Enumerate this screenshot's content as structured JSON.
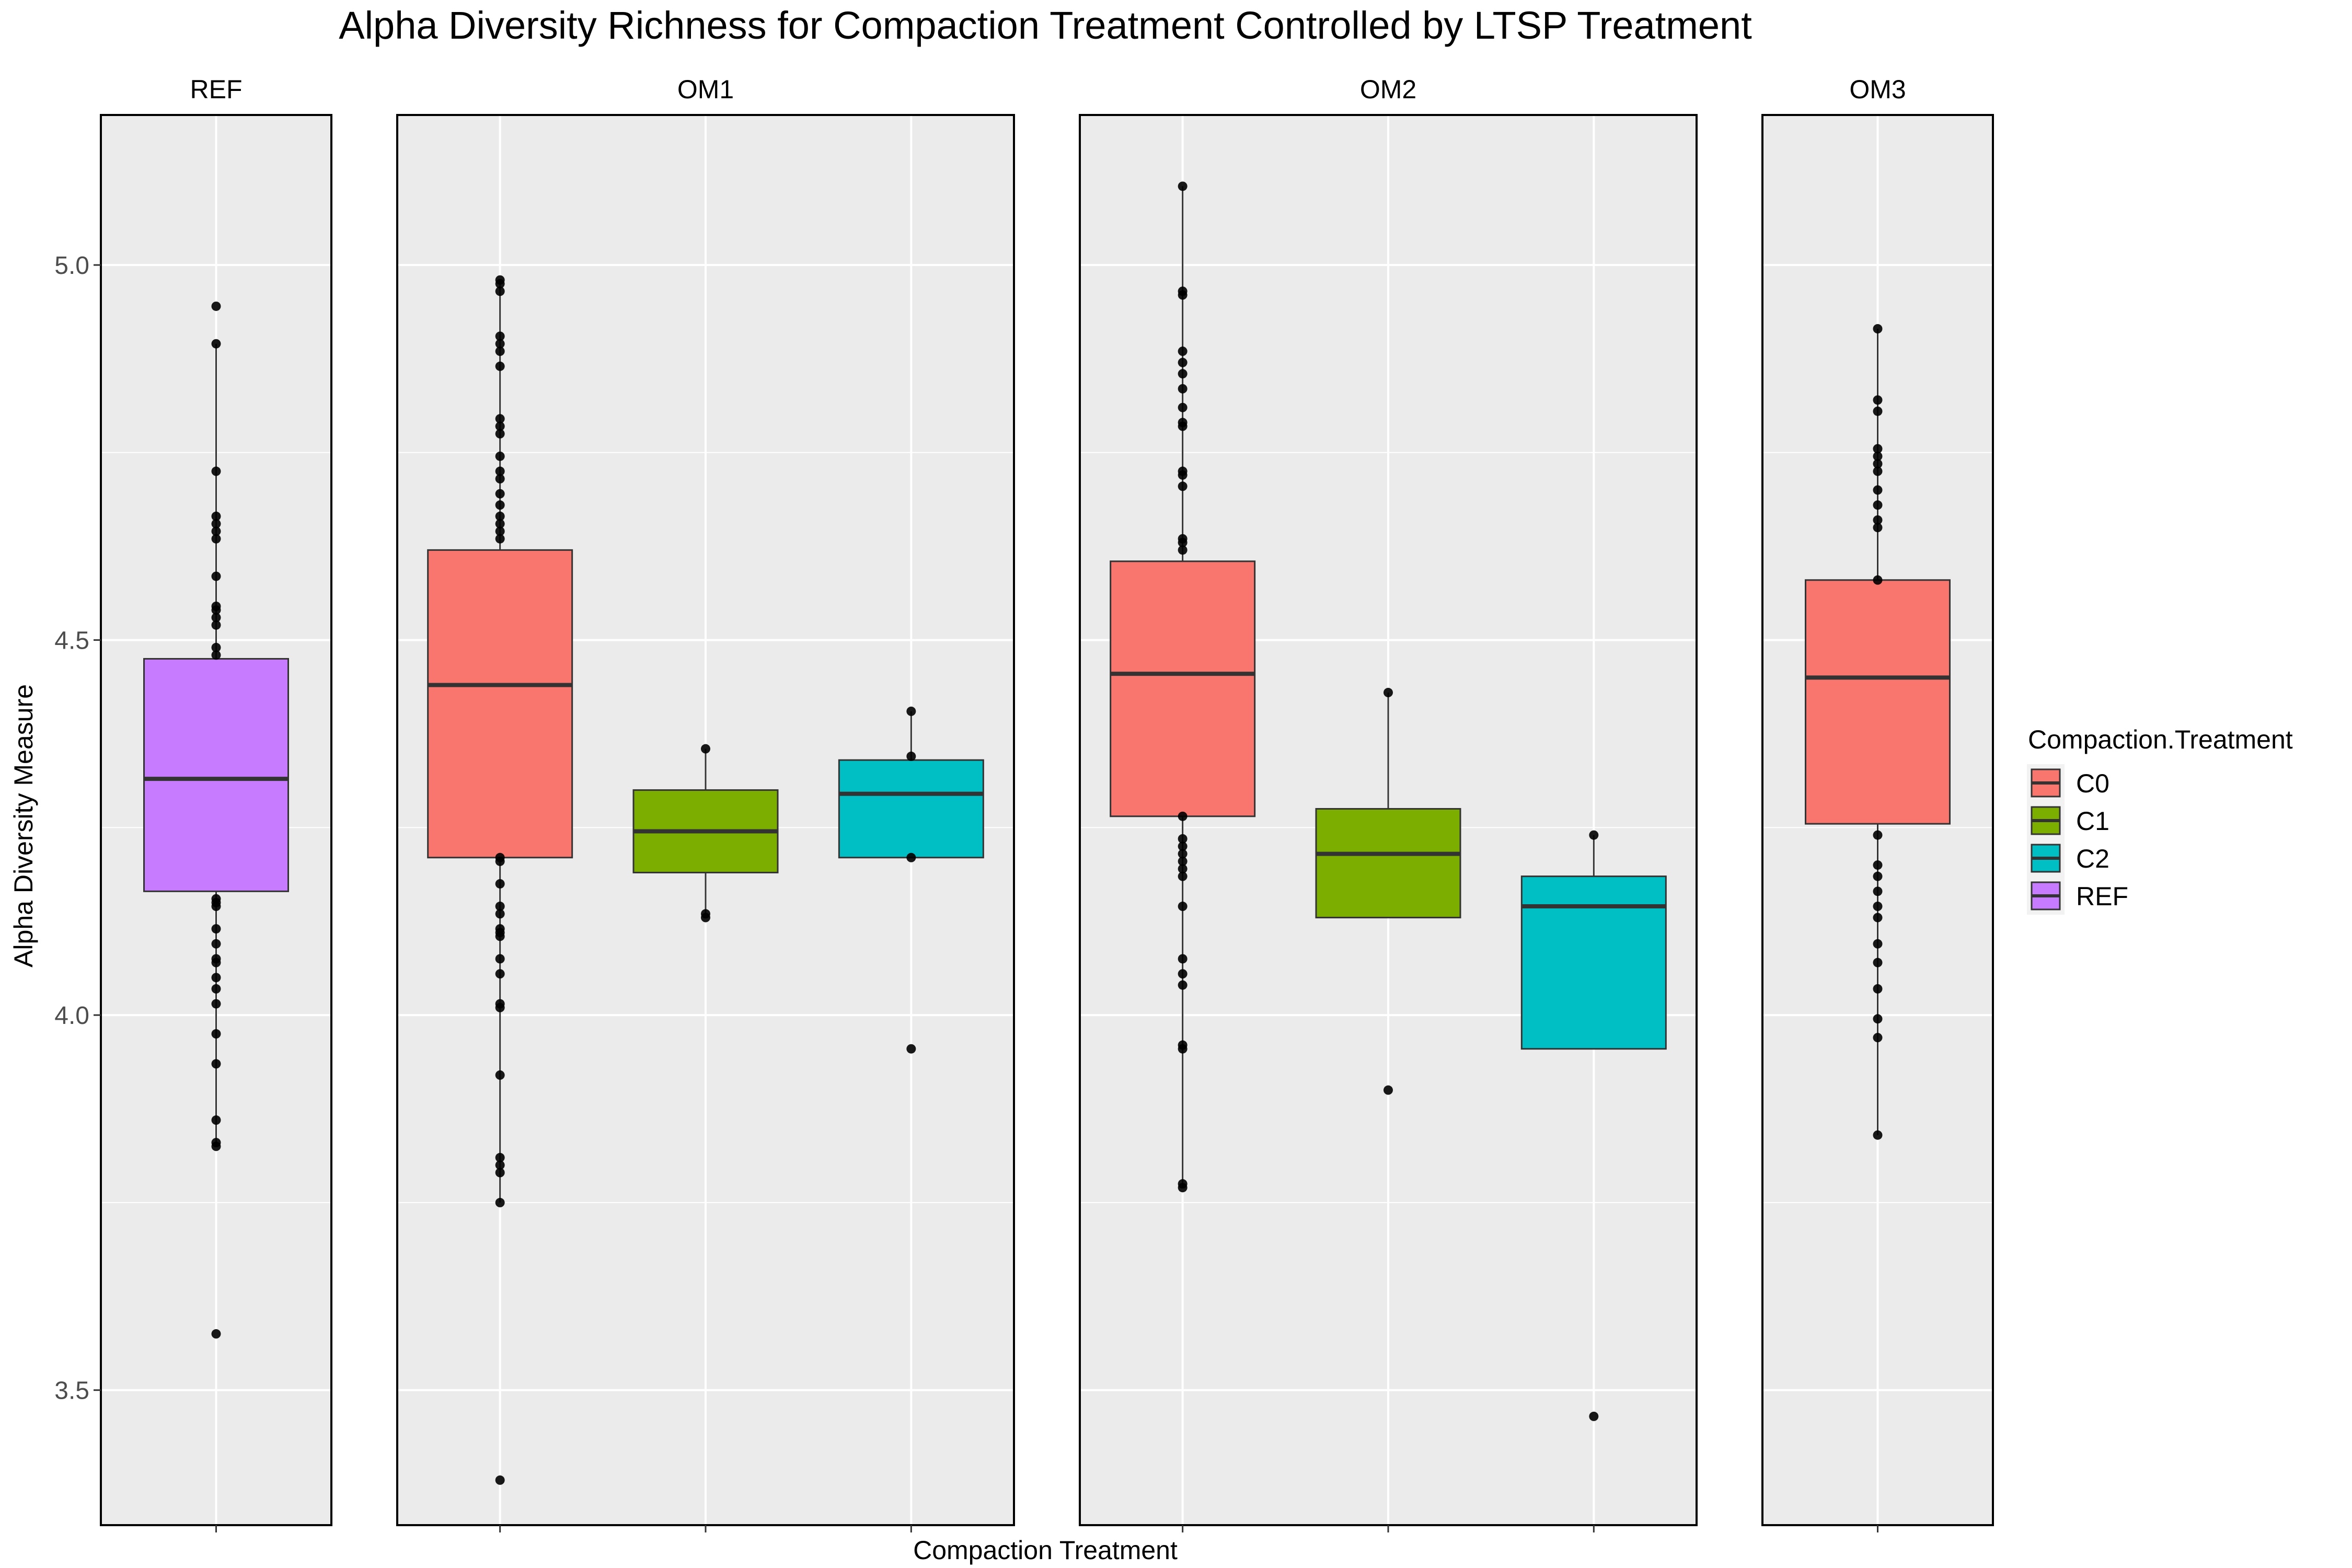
{
  "chart_data": {
    "type": "box",
    "title": "Alpha Diversity Richness for Compaction Treatment Controlled by LTSP Treatment",
    "xlabel": "Compaction Treatment",
    "ylabel": "Alpha Diversity Measure",
    "ylim": [
      3.32,
      5.2
    ],
    "yticks": [
      3.5,
      4.0,
      4.5,
      5.0
    ],
    "ytick_labels": [
      "3.5",
      "4.0",
      "4.5",
      "5.0"
    ],
    "grid": true,
    "legend": {
      "title": "Compaction.Treatment",
      "position": "right",
      "entries": [
        {
          "label": "C0",
          "color": "#F8766D"
        },
        {
          "label": "C1",
          "color": "#7CAE00"
        },
        {
          "label": "C2",
          "color": "#00BFC4"
        },
        {
          "label": "REF",
          "color": "#C77CFF"
        }
      ]
    },
    "panels": [
      {
        "name": "REF",
        "categories": [
          "REF"
        ],
        "boxes": [
          {
            "group": "REF",
            "q1": 4.165,
            "median": 4.315,
            "q3": 4.475,
            "whisker_low": 3.825,
            "whisker_high": 4.895,
            "points": [
              4.945,
              4.895,
              4.725,
              4.665,
              4.655,
              4.645,
              4.635,
              4.585,
              4.545,
              4.54,
              4.53,
              4.52,
              4.49,
              4.48,
              4.155,
              4.15,
              4.145,
              4.115,
              4.095,
              4.075,
              4.07,
              4.05,
              4.035,
              4.015,
              3.975,
              3.935,
              3.86,
              3.83,
              3.825,
              3.575
            ]
          }
        ]
      },
      {
        "name": "OM1",
        "categories": [
          "C0",
          "C1",
          "C2"
        ],
        "boxes": [
          {
            "group": "C0",
            "q1": 4.21,
            "median": 4.44,
            "q3": 4.62,
            "whisker_low": 3.75,
            "whisker_high": 4.98,
            "points": [
              4.98,
              4.975,
              4.965,
              4.905,
              4.895,
              4.885,
              4.865,
              4.795,
              4.785,
              4.775,
              4.745,
              4.725,
              4.715,
              4.695,
              4.68,
              4.665,
              4.655,
              4.645,
              4.635,
              4.21,
              4.205,
              4.175,
              4.145,
              4.135,
              4.115,
              4.11,
              4.105,
              4.075,
              4.055,
              4.015,
              4.01,
              3.92,
              3.81,
              3.8,
              3.79,
              3.75,
              3.38
            ]
          },
          {
            "group": "C1",
            "q1": 4.19,
            "median": 4.245,
            "q3": 4.3,
            "whisker_low": 4.135,
            "whisker_high": 4.355,
            "points": [
              4.355,
              4.135,
              4.13
            ]
          },
          {
            "group": "C2",
            "q1": 4.21,
            "median": 4.295,
            "q3": 4.34,
            "whisker_low": 4.21,
            "whisker_high": 4.405,
            "points": [
              4.405,
              4.345,
              4.21,
              3.955
            ]
          }
        ]
      },
      {
        "name": "OM2",
        "categories": [
          "C0",
          "C1",
          "C2"
        ],
        "boxes": [
          {
            "group": "C0",
            "q1": 4.265,
            "median": 4.455,
            "q3": 4.605,
            "whisker_low": 3.77,
            "whisker_high": 5.105,
            "points": [
              5.105,
              4.965,
              4.96,
              4.885,
              4.87,
              4.855,
              4.835,
              4.81,
              4.79,
              4.785,
              4.725,
              4.72,
              4.705,
              4.635,
              4.63,
              4.62,
              4.265,
              4.235,
              4.225,
              4.215,
              4.205,
              4.195,
              4.185,
              4.145,
              4.075,
              4.055,
              4.04,
              3.96,
              3.955,
              3.775,
              3.77
            ]
          },
          {
            "group": "C1",
            "q1": 4.13,
            "median": 4.215,
            "q3": 4.275,
            "whisker_low": 4.13,
            "whisker_high": 4.43,
            "points": [
              4.43,
              3.9
            ]
          },
          {
            "group": "C2",
            "q1": 3.955,
            "median": 4.145,
            "q3": 4.185,
            "whisker_low": 3.955,
            "whisker_high": 4.24,
            "points": [
              4.24,
              3.465
            ]
          }
        ]
      },
      {
        "name": "OM3",
        "categories": [
          "C0"
        ],
        "boxes": [
          {
            "group": "C0",
            "q1": 4.255,
            "median": 4.45,
            "q3": 4.58,
            "whisker_low": 3.84,
            "whisker_high": 4.915,
            "points": [
              4.915,
              4.82,
              4.805,
              4.755,
              4.745,
              4.735,
              4.725,
              4.7,
              4.68,
              4.66,
              4.65,
              4.58,
              4.24,
              4.2,
              4.185,
              4.165,
              4.145,
              4.13,
              4.095,
              4.07,
              4.035,
              3.995,
              3.97,
              3.84
            ]
          }
        ]
      }
    ]
  }
}
